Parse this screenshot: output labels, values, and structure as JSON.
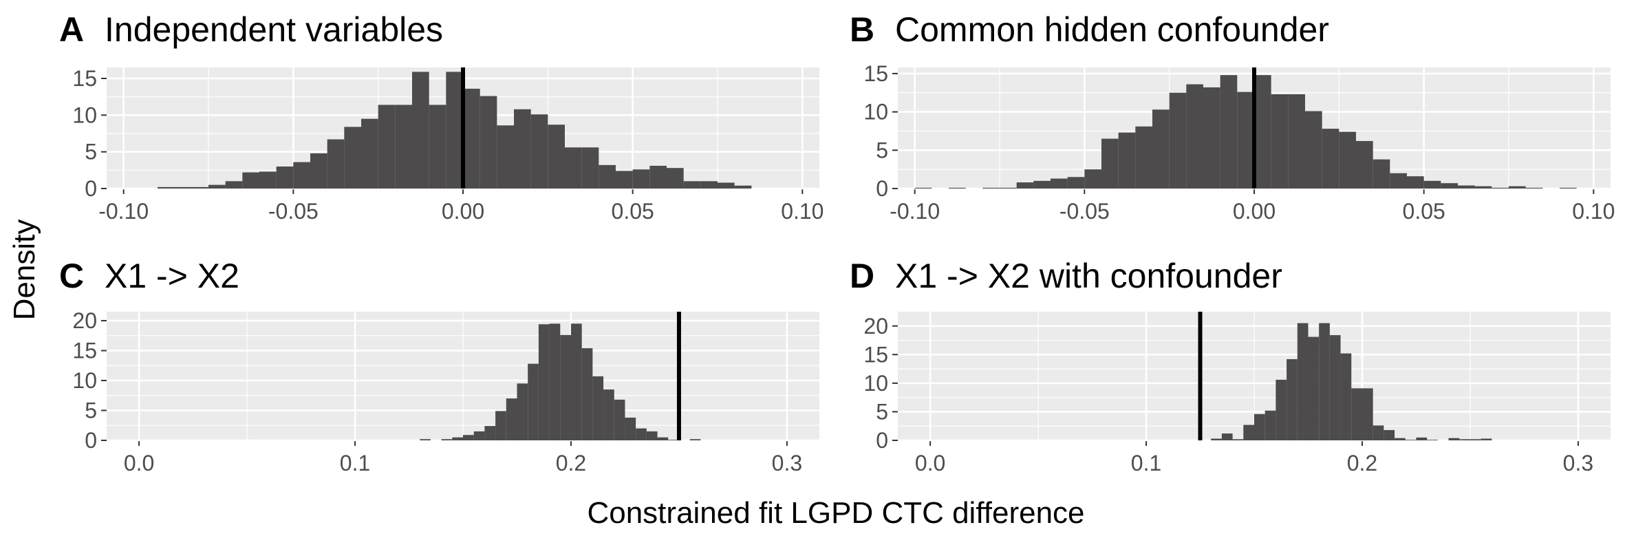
{
  "figure": {
    "ylabel": "Density",
    "xlabel": "Constrained fit LGPD CTC difference"
  },
  "colors": {
    "panel_background": "#ebebeb",
    "grid": "#ffffff",
    "bar_fill": "#4d4b4c",
    "reference_line": "#000000",
    "tick_text": "#4d4d4d"
  },
  "chart_data": [
    {
      "type": "histogram",
      "panel": "A",
      "title": "Independent variables",
      "xlim": [
        -0.105,
        0.105
      ],
      "ylim": [
        0,
        16.5
      ],
      "xticks": [
        -0.1,
        -0.05,
        0.0,
        0.05,
        0.1
      ],
      "xtick_labels": [
        "-0.10",
        "-0.05",
        "0.00",
        "0.05",
        "0.10"
      ],
      "yticks": [
        0,
        5,
        10,
        15
      ],
      "ytick_labels": [
        "0",
        "5",
        "10",
        "15"
      ],
      "bin_width": 0.005,
      "bin_start": -0.09,
      "values": [
        0.2,
        0.2,
        0.2,
        0.5,
        1.0,
        2.2,
        2.3,
        3.0,
        3.6,
        4.8,
        6.7,
        8.4,
        9.5,
        11.4,
        11.4,
        15.9,
        11.4,
        15.9,
        13.6,
        12.6,
        8.6,
        10.8,
        10.1,
        8.7,
        5.6,
        5.6,
        3.2,
        2.4,
        2.6,
        3.1,
        2.8,
        1.0,
        1.0,
        0.8,
        0.4
      ],
      "reference_line_x": 0.0
    },
    {
      "type": "histogram",
      "panel": "B",
      "title": "Common hidden confounder",
      "xlim": [
        -0.105,
        0.105
      ],
      "ylim": [
        0,
        15.8
      ],
      "xticks": [
        -0.1,
        -0.05,
        0.0,
        0.05,
        0.1
      ],
      "xtick_labels": [
        "-0.10",
        "-0.05",
        "0.00",
        "0.05",
        "0.10"
      ],
      "yticks": [
        0,
        5,
        10,
        15
      ],
      "ytick_labels": [
        "0",
        "5",
        "10",
        "15"
      ],
      "bin_width": 0.005,
      "bin_start": -0.1,
      "values": [
        0.1,
        0.0,
        0.1,
        0.0,
        0.1,
        0.1,
        0.8,
        1.0,
        1.3,
        1.5,
        2.5,
        6.5,
        7.3,
        8.1,
        10.3,
        12.5,
        13.6,
        13.2,
        14.8,
        12.6,
        14.8,
        12.3,
        12.3,
        10.1,
        7.8,
        7.4,
        6.2,
        3.8,
        2.0,
        1.6,
        1.0,
        0.7,
        0.4,
        0.3,
        0.1,
        0.3,
        0.1,
        0.0,
        0.1,
        0.0
      ],
      "reference_line_x": 0.0
    },
    {
      "type": "histogram",
      "panel": "C",
      "title": "X1 -> X2",
      "xlim": [
        -0.015,
        0.315
      ],
      "ylim": [
        0,
        21.5
      ],
      "xticks": [
        0.0,
        0.1,
        0.2,
        0.3
      ],
      "xtick_labels": [
        "0.0",
        "0.1",
        "0.2",
        "0.3"
      ],
      "yticks": [
        0,
        5,
        10,
        15,
        20
      ],
      "ytick_labels": [
        "0",
        "5",
        "10",
        "15",
        "20"
      ],
      "bin_width": 0.005,
      "bin_start": 0.13,
      "values": [
        0.2,
        0.0,
        0.2,
        0.5,
        0.9,
        1.5,
        2.4,
        4.9,
        7.0,
        9.5,
        12.8,
        19.4,
        19.5,
        17.6,
        19.5,
        15.4,
        10.7,
        8.5,
        6.8,
        3.8,
        2.0,
        1.5,
        0.5,
        0.1,
        0.0,
        0.2
      ],
      "reference_line_x": 0.25
    },
    {
      "type": "histogram",
      "panel": "D",
      "title": "X1 -> X2 with confounder",
      "xlim": [
        -0.015,
        0.315
      ],
      "ylim": [
        0,
        22.5
      ],
      "xticks": [
        0.0,
        0.1,
        0.2,
        0.3
      ],
      "xtick_labels": [
        "0.0",
        "0.1",
        "0.2",
        "0.3"
      ],
      "yticks": [
        0,
        5,
        10,
        15,
        20
      ],
      "ytick_labels": [
        "0",
        "5",
        "10",
        "15",
        "20"
      ],
      "bin_width": 0.005,
      "bin_start": 0.13,
      "values": [
        0.3,
        1.2,
        0.2,
        2.7,
        4.6,
        5.2,
        10.6,
        14.2,
        20.5,
        18.1,
        20.5,
        18.4,
        15.2,
        9.1,
        9.1,
        2.6,
        1.8,
        0.4,
        0.1,
        0.5,
        0.1,
        0.0,
        0.4,
        0.2,
        0.2,
        0.3
      ],
      "reference_line_x": 0.125
    }
  ]
}
